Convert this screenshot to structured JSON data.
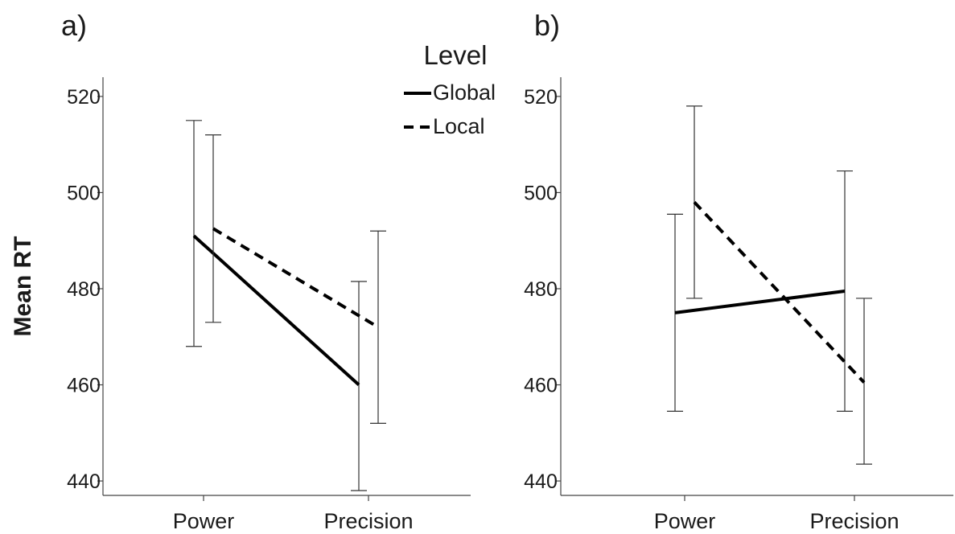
{
  "ylabel": "Mean RT",
  "legend": {
    "title": "Level",
    "items": [
      {
        "label": "Global",
        "style": "solid"
      },
      {
        "label": "Local",
        "style": "dashed"
      }
    ]
  },
  "chart_data": [
    {
      "panel_label": "a)",
      "type": "line",
      "categories": [
        "Power",
        "Precision"
      ],
      "ylim": [
        437,
        524
      ],
      "yticks": [
        440,
        460,
        480,
        500,
        520
      ],
      "xlabel": "",
      "ylabel": "Mean RT",
      "series": [
        {
          "name": "Global",
          "style": "solid",
          "values": [
            491,
            460
          ],
          "error_low": [
            468,
            438
          ],
          "error_high": [
            515,
            481.5
          ]
        },
        {
          "name": "Local",
          "style": "dashed",
          "values": [
            492.5,
            472
          ],
          "error_low": [
            473,
            452
          ],
          "error_high": [
            512,
            492
          ]
        }
      ]
    },
    {
      "panel_label": "b)",
      "type": "line",
      "categories": [
        "Power",
        "Precision"
      ],
      "ylim": [
        437,
        524
      ],
      "yticks": [
        440,
        460,
        480,
        500,
        520
      ],
      "xlabel": "",
      "ylabel": "",
      "series": [
        {
          "name": "Global",
          "style": "solid",
          "values": [
            475,
            479.5
          ],
          "error_low": [
            454.5,
            454.5
          ],
          "error_high": [
            495.5,
            504.5
          ]
        },
        {
          "name": "Local",
          "style": "dashed",
          "values": [
            498,
            460.5
          ],
          "error_low": [
            478,
            443.5
          ],
          "error_high": [
            518,
            478
          ]
        }
      ]
    }
  ]
}
